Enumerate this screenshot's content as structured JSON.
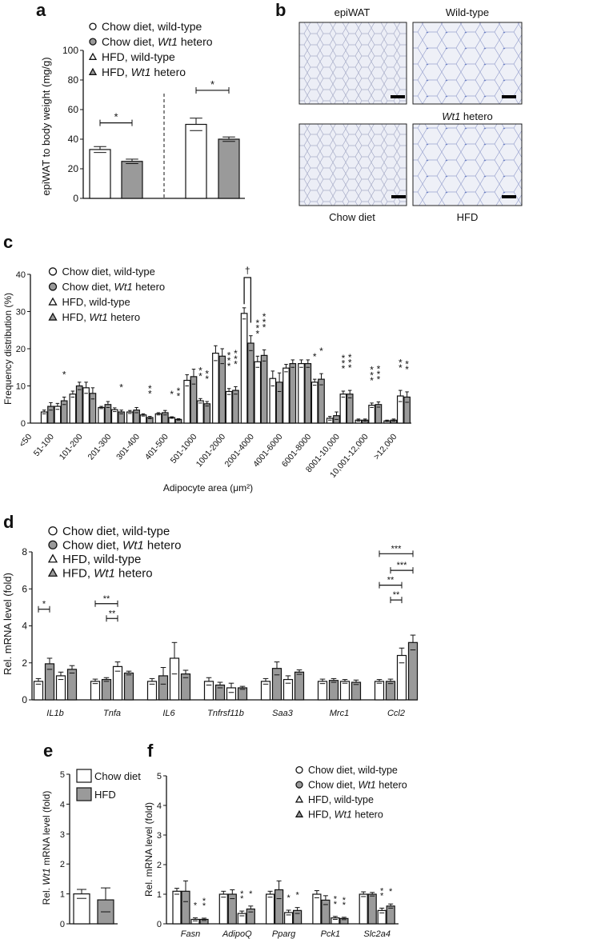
{
  "colors": {
    "wild_type": "#ffffff",
    "hetero": "#9a9a9a",
    "axis": "#111111"
  },
  "legend_groups": [
    {
      "pre": "Chow diet, ",
      "it": "",
      "post": "wild-type",
      "marker": "circle",
      "fill": "#ffffff"
    },
    {
      "pre": "Chow diet, ",
      "it": "Wt1",
      "post": " hetero",
      "marker": "circle",
      "fill": "#9a9a9a"
    },
    {
      "pre": "HFD, ",
      "it": "",
      "post": "wild-type",
      "marker": "triangle",
      "fill": "#ffffff"
    },
    {
      "pre": "HFD, ",
      "it": "Wt1",
      "post": " hetero",
      "marker": "triangle",
      "fill": "#9a9a9a"
    }
  ],
  "panel_b": {
    "label": "b",
    "col_titles": [
      "epiWAT",
      "Wild-type"
    ],
    "row2_title_it": "Wt1",
    "row2_title_post": " hetero",
    "bottom_labels": [
      "Chow diet",
      "HFD"
    ]
  },
  "chart_data": [
    {
      "id": "a",
      "label": "a",
      "type": "bar",
      "ylabel": "epiWAT to body weight (mg/g)",
      "ylim": [
        0,
        100
      ],
      "yticks": [
        0,
        20,
        40,
        60,
        80,
        100
      ],
      "categories": [
        "Chow diet, wild-type",
        "Chow diet, Wt1 hetero",
        "HFD, wild-type",
        "HFD, Wt1 hetero"
      ],
      "values": [
        33,
        25,
        50,
        40
      ],
      "errors": [
        2,
        1.5,
        4.2,
        1.5
      ],
      "significance": [
        {
          "from": 0,
          "to": 1,
          "y": 51,
          "text": "*"
        },
        {
          "from": 2,
          "to": 3,
          "y": 73,
          "text": "*"
        }
      ]
    },
    {
      "id": "c",
      "label": "c",
      "type": "bar",
      "ylabel": "Frequency distribution (%)",
      "xlabel": "Adipocyte area (μm²)",
      "ylim": [
        0,
        40
      ],
      "yticks": [
        0,
        10,
        20,
        30,
        40
      ],
      "categories": [
        "<50",
        "51-100",
        "101-200",
        "201-300",
        "301-400",
        "401-500",
        "501-1000",
        "1001-2000",
        "2001-4000",
        "4001-6000",
        "6001-8000",
        "8001-10,000",
        "10,001-12,000",
        ">12,000"
      ],
      "series": [
        {
          "name": "Chow diet, wild-type",
          "values": [
            null,
            3,
            7.8,
            4.2,
            3,
            2.5,
            11.5,
            18.8,
            29.5,
            12,
            16,
            1.3,
            0.8,
            0.6
          ],
          "errors": [
            null,
            0.5,
            0.8,
            0.3,
            0.4,
            0.3,
            1.5,
            2,
            1.5,
            2,
            1,
            0.5,
            0.3,
            0.2
          ]
        },
        {
          "name": "Chow diet, Wt1 hetero",
          "values": [
            null,
            4.5,
            10,
            5,
            3.5,
            2.8,
            12.5,
            18,
            21.5,
            11,
            16,
            2,
            0.8,
            0.8
          ],
          "errors": [
            null,
            1,
            1,
            0.8,
            0.7,
            0.6,
            2,
            2,
            2,
            2.5,
            1,
            1,
            0.3,
            0.3
          ]
        },
        {
          "name": "HFD, wild-type",
          "values": [
            null,
            4.5,
            9.5,
            3.6,
            2.2,
            1.5,
            6,
            8.5,
            16.5,
            14.8,
            11,
            7.8,
            4.8,
            7.3
          ],
          "errors": [
            null,
            0.8,
            1.5,
            0.5,
            0.3,
            0.2,
            0.6,
            0.8,
            1.5,
            1,
            0.8,
            0.8,
            0.6,
            1.5
          ]
        },
        {
          "name": "HFD, Wt1 hetero",
          "values": [
            null,
            6,
            8,
            3,
            1.5,
            1,
            5.2,
            8.8,
            18.2,
            16,
            11.8,
            7.8,
            5,
            7
          ],
          "errors": [
            null,
            1,
            1.5,
            0.5,
            0.3,
            0.2,
            0.6,
            1,
            1.5,
            1,
            1.5,
            1,
            0.7,
            1.4
          ]
        }
      ],
      "stars": [
        {
          "cat": 1,
          "bar": 3,
          "text": "*"
        },
        {
          "cat": 3,
          "bar": 3,
          "text": "*"
        },
        {
          "cat": 4,
          "bar": 3,
          "text": "**"
        },
        {
          "cat": 5,
          "bar": 2,
          "text": "*"
        },
        {
          "cat": 5,
          "bar": 3,
          "text": "**"
        },
        {
          "cat": 6,
          "bar": 2,
          "text": "**"
        },
        {
          "cat": 6,
          "bar": 3,
          "text": "**"
        },
        {
          "cat": 7,
          "bar": 2,
          "text": "***"
        },
        {
          "cat": 7,
          "bar": 3,
          "text": "***"
        },
        {
          "cat": 8,
          "bar": 2,
          "text": "***"
        },
        {
          "cat": 8,
          "bar": 3,
          "text": "***"
        },
        {
          "cat": 10,
          "bar": 2,
          "text": "*"
        },
        {
          "cat": 10,
          "bar": 3,
          "text": "*"
        },
        {
          "cat": 11,
          "bar": 2,
          "text": "***"
        },
        {
          "cat": 11,
          "bar": 3,
          "text": "***"
        },
        {
          "cat": 12,
          "bar": 2,
          "text": "***"
        },
        {
          "cat": 12,
          "bar": 3,
          "text": "***"
        },
        {
          "cat": 13,
          "bar": 2,
          "text": "**"
        },
        {
          "cat": 13,
          "bar": 3,
          "text": "**"
        }
      ],
      "dagger": {
        "cat": 8,
        "from": 0,
        "to": 1,
        "y": 40,
        "text": "†"
      }
    },
    {
      "id": "d",
      "label": "d",
      "type": "bar",
      "ylabel": "Rel. mRNA level (fold)",
      "ylim": [
        0,
        8
      ],
      "yticks": [
        0,
        2,
        4,
        6,
        8
      ],
      "categories": [
        "IL1b",
        "Tnfa",
        "IL6",
        "Tnfrsf11b",
        "Saa3",
        "Mrc1",
        "Ccl2"
      ],
      "series": [
        {
          "name": "Chow diet, wild-type",
          "values": [
            1.0,
            1.0,
            1.0,
            1.0,
            1.0,
            1.0,
            1.0
          ],
          "errors": [
            0.15,
            0.12,
            0.15,
            0.2,
            0.15,
            0.12,
            0.1
          ]
        },
        {
          "name": "Chow diet, Wt1 hetero",
          "values": [
            1.95,
            1.1,
            1.3,
            0.8,
            1.7,
            1.05,
            1.0
          ],
          "errors": [
            0.3,
            0.1,
            0.45,
            0.15,
            0.35,
            0.1,
            0.12
          ]
        },
        {
          "name": "HFD, wild-type",
          "values": [
            1.3,
            1.8,
            2.25,
            0.65,
            1.1,
            1.0,
            2.4
          ],
          "errors": [
            0.2,
            0.25,
            0.85,
            0.25,
            0.2,
            0.1,
            0.4
          ]
        },
        {
          "name": "HFD, Wt1 hetero",
          "values": [
            1.65,
            1.45,
            1.4,
            0.65,
            1.5,
            0.95,
            3.1
          ],
          "errors": [
            0.2,
            0.1,
            0.2,
            0.08,
            0.12,
            0.12,
            0.4
          ]
        }
      ],
      "brackets": [
        {
          "cat": 0,
          "from": 0,
          "to": 1,
          "y": 4.9,
          "text": "*"
        },
        {
          "cat": 1,
          "from": 0,
          "to": 2,
          "y": 5.2,
          "text": "**"
        },
        {
          "cat": 1,
          "from": 1,
          "to": 2,
          "y": 4.4,
          "text": "**"
        },
        {
          "cat": 6,
          "from": 0,
          "to": 3,
          "y": 7.9,
          "text": "***"
        },
        {
          "cat": 6,
          "from": 1,
          "to": 3,
          "y": 7.0,
          "text": "***"
        },
        {
          "cat": 6,
          "from": 0,
          "to": 2,
          "y": 6.2,
          "text": "**"
        },
        {
          "cat": 6,
          "from": 1,
          "to": 2,
          "y": 5.4,
          "text": "**"
        }
      ]
    },
    {
      "id": "e",
      "label": "e",
      "type": "bar",
      "ylabel_pre": "Rel. ",
      "ylabel_it": "Wt1",
      "ylabel_post": " mRNA level (fold)",
      "ylim": [
        0,
        5
      ],
      "yticks": [
        0,
        1,
        2,
        3,
        4,
        5
      ],
      "categories": [
        "Chow diet",
        "HFD"
      ],
      "values": [
        1.0,
        0.8
      ],
      "errors": [
        0.15,
        0.4
      ],
      "legend": [
        {
          "label": "Chow diet",
          "fill": "#ffffff"
        },
        {
          "label": "HFD",
          "fill": "#9a9a9a"
        }
      ]
    },
    {
      "id": "f",
      "label": "f",
      "type": "bar",
      "ylabel": "Rel. mRNA level (fold)",
      "ylim": [
        0,
        5
      ],
      "yticks": [
        0,
        1,
        2,
        3,
        4,
        5
      ],
      "categories": [
        "Fasn",
        "AdipoQ",
        "Pparg",
        "Pck1",
        "Slc2a4"
      ],
      "series": [
        {
          "name": "Chow diet, wild-type",
          "values": [
            1.1,
            1.0,
            1.0,
            1.0,
            1.0
          ],
          "errors": [
            0.1,
            0.1,
            0.1,
            0.12,
            0.08
          ]
        },
        {
          "name": "Chow diet, Wt1 hetero",
          "values": [
            1.1,
            1.0,
            1.15,
            0.8,
            1.0
          ],
          "errors": [
            0.35,
            0.15,
            0.3,
            0.15,
            0.06
          ]
        },
        {
          "name": "HFD, wild-type",
          "values": [
            0.15,
            0.35,
            0.38,
            0.2,
            0.45
          ],
          "errors": [
            0.05,
            0.08,
            0.08,
            0.05,
            0.08
          ]
        },
        {
          "name": "HFD, Wt1 hetero",
          "values": [
            0.15,
            0.5,
            0.45,
            0.18,
            0.6
          ],
          "errors": [
            0.04,
            0.1,
            0.1,
            0.04,
            0.07
          ]
        }
      ],
      "stars": [
        {
          "cat": 0,
          "bar": 2,
          "text": "*"
        },
        {
          "cat": 0,
          "bar": 3,
          "text": "**"
        },
        {
          "cat": 1,
          "bar": 2,
          "text": "**"
        },
        {
          "cat": 1,
          "bar": 3,
          "text": "*"
        },
        {
          "cat": 2,
          "bar": 2,
          "text": "*"
        },
        {
          "cat": 2,
          "bar": 3,
          "text": "*"
        },
        {
          "cat": 3,
          "bar": 2,
          "text": "**"
        },
        {
          "cat": 3,
          "bar": 3,
          "text": "**"
        },
        {
          "cat": 4,
          "bar": 2,
          "text": "**"
        },
        {
          "cat": 4,
          "bar": 3,
          "text": "*"
        }
      ]
    }
  ]
}
